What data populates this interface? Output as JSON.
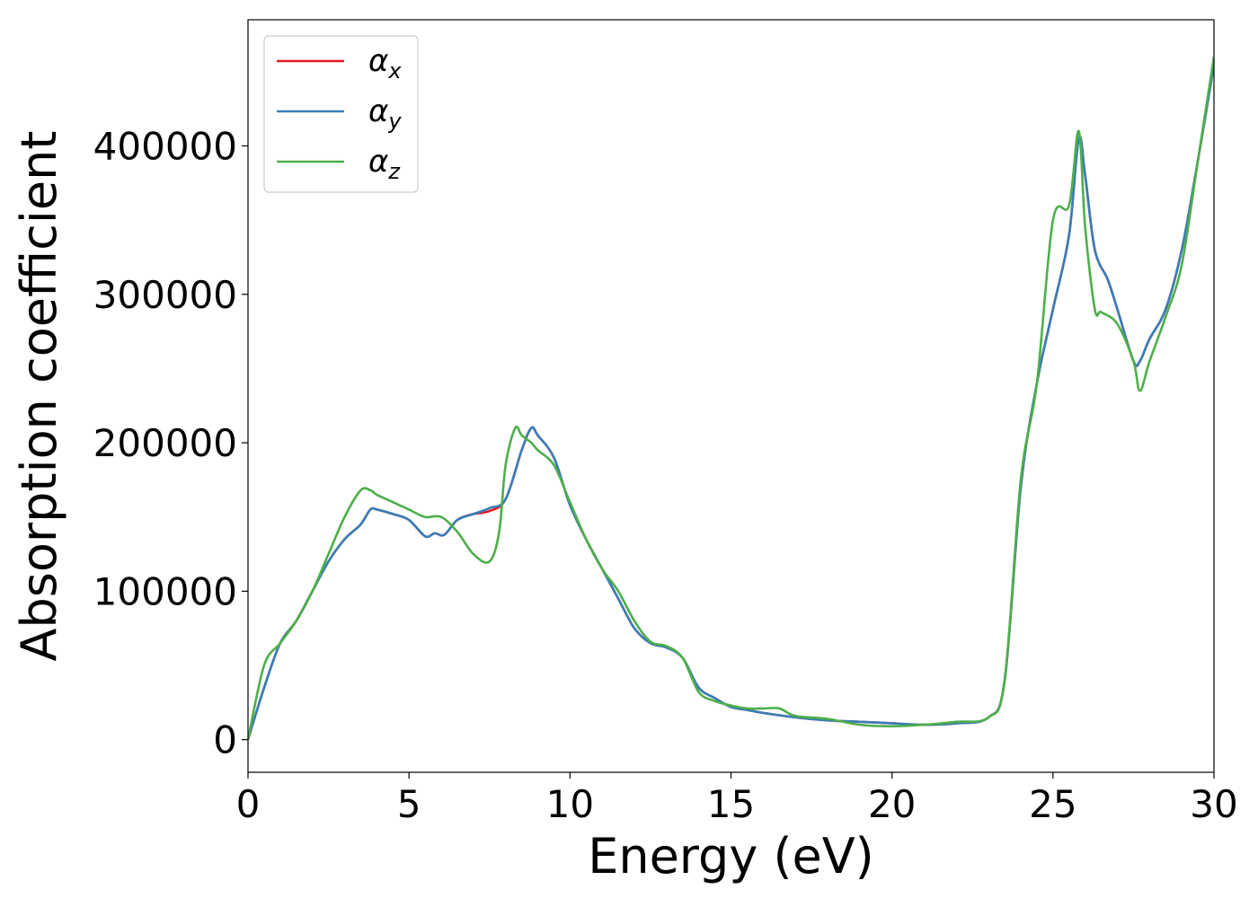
{
  "chart_data": {
    "type": "line",
    "title": "",
    "xlabel": "Energy (eV)",
    "ylabel": "Absorption coefficient",
    "xlim": [
      0,
      30
    ],
    "ylim": [
      -22000,
      485000
    ],
    "xticks": [
      0,
      5,
      10,
      15,
      20,
      25,
      30
    ],
    "yticks": [
      0,
      100000,
      200000,
      300000,
      400000
    ],
    "xtick_labels": [
      "0",
      "5",
      "10",
      "15",
      "20",
      "25",
      "30"
    ],
    "ytick_labels": [
      "0",
      "100000",
      "200000",
      "300000",
      "400000"
    ],
    "grid": false,
    "legend_position": "top-left",
    "series": [
      {
        "name": "αx",
        "legend_base": "α",
        "legend_sub": "x",
        "color": "#e41a1c",
        "x": [
          0,
          0.5,
          1,
          1.5,
          2,
          2.5,
          3,
          3.5,
          3.8,
          4,
          4.5,
          5,
          5.5,
          5.8,
          6.1,
          6.5,
          7,
          7.5,
          8,
          8.5,
          8.8,
          9,
          9.5,
          10,
          10.5,
          11,
          11.5,
          12,
          12.5,
          13,
          13.5,
          14,
          14.5,
          15,
          15.5,
          16,
          17,
          18,
          19,
          20,
          21,
          22,
          23,
          23.5,
          24,
          24.5,
          25,
          25.5,
          25.8,
          26,
          26.3,
          26.7,
          27,
          27.5,
          27.7,
          28,
          28.5,
          29,
          29.5,
          30
        ],
        "y": [
          0,
          35000,
          65000,
          80000,
          100000,
          120000,
          135000,
          145000,
          155000,
          155000,
          152000,
          148000,
          137000,
          139000,
          138000,
          148000,
          152000,
          154000,
          162000,
          195000,
          210000,
          205000,
          190000,
          158000,
          135000,
          115000,
          95000,
          75000,
          65000,
          62000,
          55000,
          35000,
          28000,
          22000,
          20000,
          18000,
          15000,
          13000,
          12000,
          11000,
          10000,
          11000,
          15000,
          40000,
          170000,
          240000,
          290000,
          340000,
          405000,
          380000,
          330000,
          310000,
          290000,
          255000,
          255000,
          270000,
          290000,
          330000,
          390000,
          455000
        ]
      },
      {
        "name": "αy",
        "legend_base": "α",
        "legend_sub": "y",
        "color": "#377eb8",
        "x": [
          0,
          0.5,
          1,
          1.5,
          2,
          2.5,
          3,
          3.5,
          3.8,
          4,
          4.5,
          5,
          5.5,
          5.8,
          6.1,
          6.5,
          7,
          7.5,
          8,
          8.5,
          8.8,
          9,
          9.5,
          10,
          10.5,
          11,
          11.5,
          12,
          12.5,
          13,
          13.5,
          14,
          14.5,
          15,
          15.5,
          16,
          17,
          18,
          19,
          20,
          21,
          22,
          23,
          23.5,
          24,
          24.5,
          25,
          25.5,
          25.8,
          26,
          26.3,
          26.7,
          27,
          27.5,
          27.7,
          28,
          28.5,
          29,
          29.5,
          30
        ],
        "y": [
          0,
          35000,
          65000,
          80000,
          100000,
          120000,
          135000,
          145000,
          155000,
          155000,
          152000,
          148000,
          137000,
          139000,
          138000,
          148000,
          152000,
          156000,
          162000,
          195000,
          210000,
          205000,
          190000,
          158000,
          135000,
          115000,
          95000,
          75000,
          65000,
          62000,
          55000,
          35000,
          28000,
          22000,
          20000,
          18000,
          15000,
          13000,
          12000,
          11000,
          10000,
          11000,
          15000,
          40000,
          170000,
          240000,
          290000,
          340000,
          405000,
          380000,
          330000,
          310000,
          290000,
          255000,
          255000,
          270000,
          290000,
          330000,
          390000,
          455000
        ]
      },
      {
        "name": "αz",
        "legend_base": "α",
        "legend_sub": "z",
        "color": "#4daf4a",
        "x": [
          0,
          0.5,
          1,
          1.5,
          2,
          2.5,
          3,
          3.5,
          3.8,
          4,
          4.5,
          5,
          5.5,
          6,
          6.5,
          7,
          7.5,
          7.8,
          8,
          8.3,
          8.5,
          8.8,
          9,
          9.5,
          10,
          10.5,
          11,
          11.5,
          12,
          12.5,
          13,
          13.5,
          14,
          14.5,
          15,
          15.5,
          16,
          16.5,
          17,
          18,
          19,
          20,
          21,
          22,
          23,
          23.5,
          24,
          24.5,
          25,
          25.5,
          25.8,
          26,
          26.3,
          26.5,
          27,
          27.5,
          27.7,
          28,
          28.5,
          29,
          29.5,
          30
        ],
        "y": [
          0,
          50000,
          65000,
          80000,
          100000,
          125000,
          150000,
          168000,
          168000,
          165000,
          160000,
          155000,
          150000,
          150000,
          140000,
          125000,
          120000,
          140000,
          185000,
          210000,
          205000,
          200000,
          195000,
          185000,
          160000,
          135000,
          115000,
          100000,
          80000,
          66000,
          63000,
          55000,
          32000,
          26000,
          23000,
          21000,
          21000,
          21000,
          16000,
          14000,
          10000,
          9000,
          10000,
          12000,
          15000,
          40000,
          175000,
          240000,
          350000,
          360000,
          410000,
          345000,
          290000,
          288000,
          280000,
          255000,
          235000,
          255000,
          285000,
          320000,
          390000,
          460000
        ]
      }
    ]
  }
}
